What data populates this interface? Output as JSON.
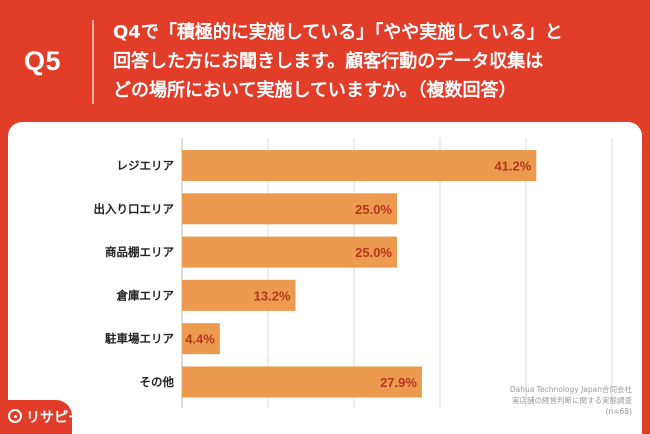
{
  "header": {
    "qlabel": "Q5",
    "question_lines": [
      "Q4で「積極的に実施している」「やや実施している」と",
      "回答した方にお聞きします。顧客行動のデータ収集は",
      "どの場所において実施していますか。（複数回答）"
    ]
  },
  "colors": {
    "brand": "#e23d29",
    "bar": "#eb9a4e",
    "value_text": "#b7371f",
    "grid": "#dddddd"
  },
  "chart_data": {
    "type": "bar",
    "orientation": "horizontal",
    "categories": [
      "レジエリア",
      "出入り口エリア",
      "商品棚エリア",
      "倉庫エリア",
      "駐車場エリア",
      "その他"
    ],
    "values": [
      41.2,
      25.0,
      25.0,
      13.2,
      4.4,
      27.9
    ],
    "value_labels": [
      "41.2%",
      "25.0%",
      "25.0%",
      "13.2%",
      "4.4%",
      "27.9%"
    ],
    "xlim": [
      0,
      50
    ],
    "grid": true
  },
  "footnote": {
    "lines": [
      "Dahua Technology Japan合同会社",
      "実店舗の経営判断に関する実態調査",
      "(n=68)"
    ]
  },
  "logo": {
    "text": "リサピー"
  }
}
